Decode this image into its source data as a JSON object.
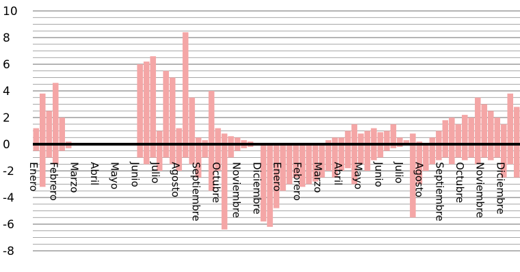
{
  "chart_data": {
    "type": "bar",
    "title": "",
    "xlabel": "",
    "ylabel": "",
    "ylim": [
      -8,
      10
    ],
    "y_ticks": [
      10,
      8,
      6,
      4,
      2,
      0,
      -2,
      -4,
      -6,
      -8
    ],
    "grid": "horizontal",
    "legend": "none",
    "colors": {
      "bars": "#f4a6a6",
      "gridline": "#888888",
      "zero_line": "#000000"
    },
    "month_labels": [
      "Enero",
      "Febrero",
      "Marzo",
      "Abril",
      "Mayo",
      "Junio",
      "Julio",
      "Agosto",
      "Septiembre",
      "Octubre",
      "Noviembre",
      "Diciembre",
      "Enero",
      "Febrero",
      "Marzo",
      "Abril",
      "Mayo",
      "Junio",
      "Julio",
      "Agosto",
      "Septiembre",
      "Octubre",
      "Noviembre",
      "Diciembre"
    ],
    "series": [
      {
        "values": [
          1.2,
          3.8,
          2.5,
          4.6,
          2.0,
          0.2,
          0.1,
          0.0,
          0.0,
          0.0,
          0.0,
          0.0,
          0.0,
          0.0,
          0.0,
          0.0,
          6.0,
          6.2,
          6.6,
          1.0,
          5.5,
          5.0,
          1.2,
          8.4,
          3.5,
          0.5,
          0.3,
          4.0,
          1.2,
          0.8,
          0.6,
          0.5,
          0.3,
          0.2,
          0.1,
          0.0,
          0.0,
          0.0,
          0.0,
          0.0,
          0.0,
          0.0,
          0.0,
          0.0,
          0.0,
          0.3,
          0.5,
          0.5,
          1.0,
          1.5,
          0.8,
          1.0,
          1.2,
          0.9,
          1.0,
          1.5,
          0.5,
          0.3,
          0.8,
          0.2,
          0.0,
          0.5,
          1.0,
          1.8,
          2.0,
          1.5,
          2.2,
          2.0,
          3.5,
          3.0,
          2.5,
          2.0,
          1.5,
          3.8,
          2.8
        ],
        "mins": [
          -0.5,
          -3.2,
          -1.0,
          -1.5,
          -0.5,
          -0.3,
          0.0,
          0.0,
          0.0,
          0.0,
          0.0,
          0.0,
          0.0,
          0.0,
          0.0,
          0.0,
          -1.0,
          -1.5,
          -1.0,
          -2.0,
          -1.0,
          -1.5,
          -2.0,
          -1.0,
          -1.5,
          -2.5,
          -1.0,
          -3.5,
          -2.0,
          -6.4,
          -1.0,
          -0.5,
          -0.3,
          -0.2,
          -0.1,
          -5.8,
          -6.2,
          -4.8,
          -3.5,
          -3.0,
          -2.5,
          -3.2,
          -3.0,
          -2.8,
          -2.5,
          -2.0,
          -2.5,
          -2.0,
          -1.8,
          -3.0,
          -1.5,
          -2.0,
          -1.2,
          -1.0,
          -0.5,
          -0.3,
          -0.2,
          -0.1,
          -5.5,
          -3.0,
          -2.0,
          -1.5,
          -1.2,
          -1.0,
          -1.5,
          -1.0,
          -1.2,
          -1.0,
          -1.5,
          -1.0,
          -1.2,
          -1.0,
          -2.5,
          -1.5,
          -2.5
        ]
      }
    ]
  }
}
